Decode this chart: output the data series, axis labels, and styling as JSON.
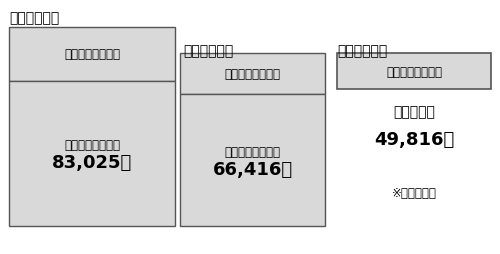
{
  "bg_color": "#ffffff",
  "box_fill": "#d9d9d9",
  "box_edge": "#555555",
  "title1": "〈１級障害〉",
  "title2": "〈２級障害〉",
  "title3": "〈３級障害〉",
  "box1_top_label": "障害厚生年金１級",
  "box1_bot_label": "障害基礎年金１級",
  "box1_bot_value": "83,025円",
  "box2_top_label": "障害厚生年金２級",
  "box2_bot_label": "障害基礎年金２級",
  "box2_bot_value": "66,416円",
  "box3_label": "障害厚生年金３級",
  "box3_sublabel": "最低保障額",
  "box3_value": "49,816円",
  "note": "※金額は月額",
  "font_family": "Noto Sans CJK JP",
  "small_font": 8.5,
  "medium_font": 10,
  "large_font": 13,
  "title_font": 10
}
